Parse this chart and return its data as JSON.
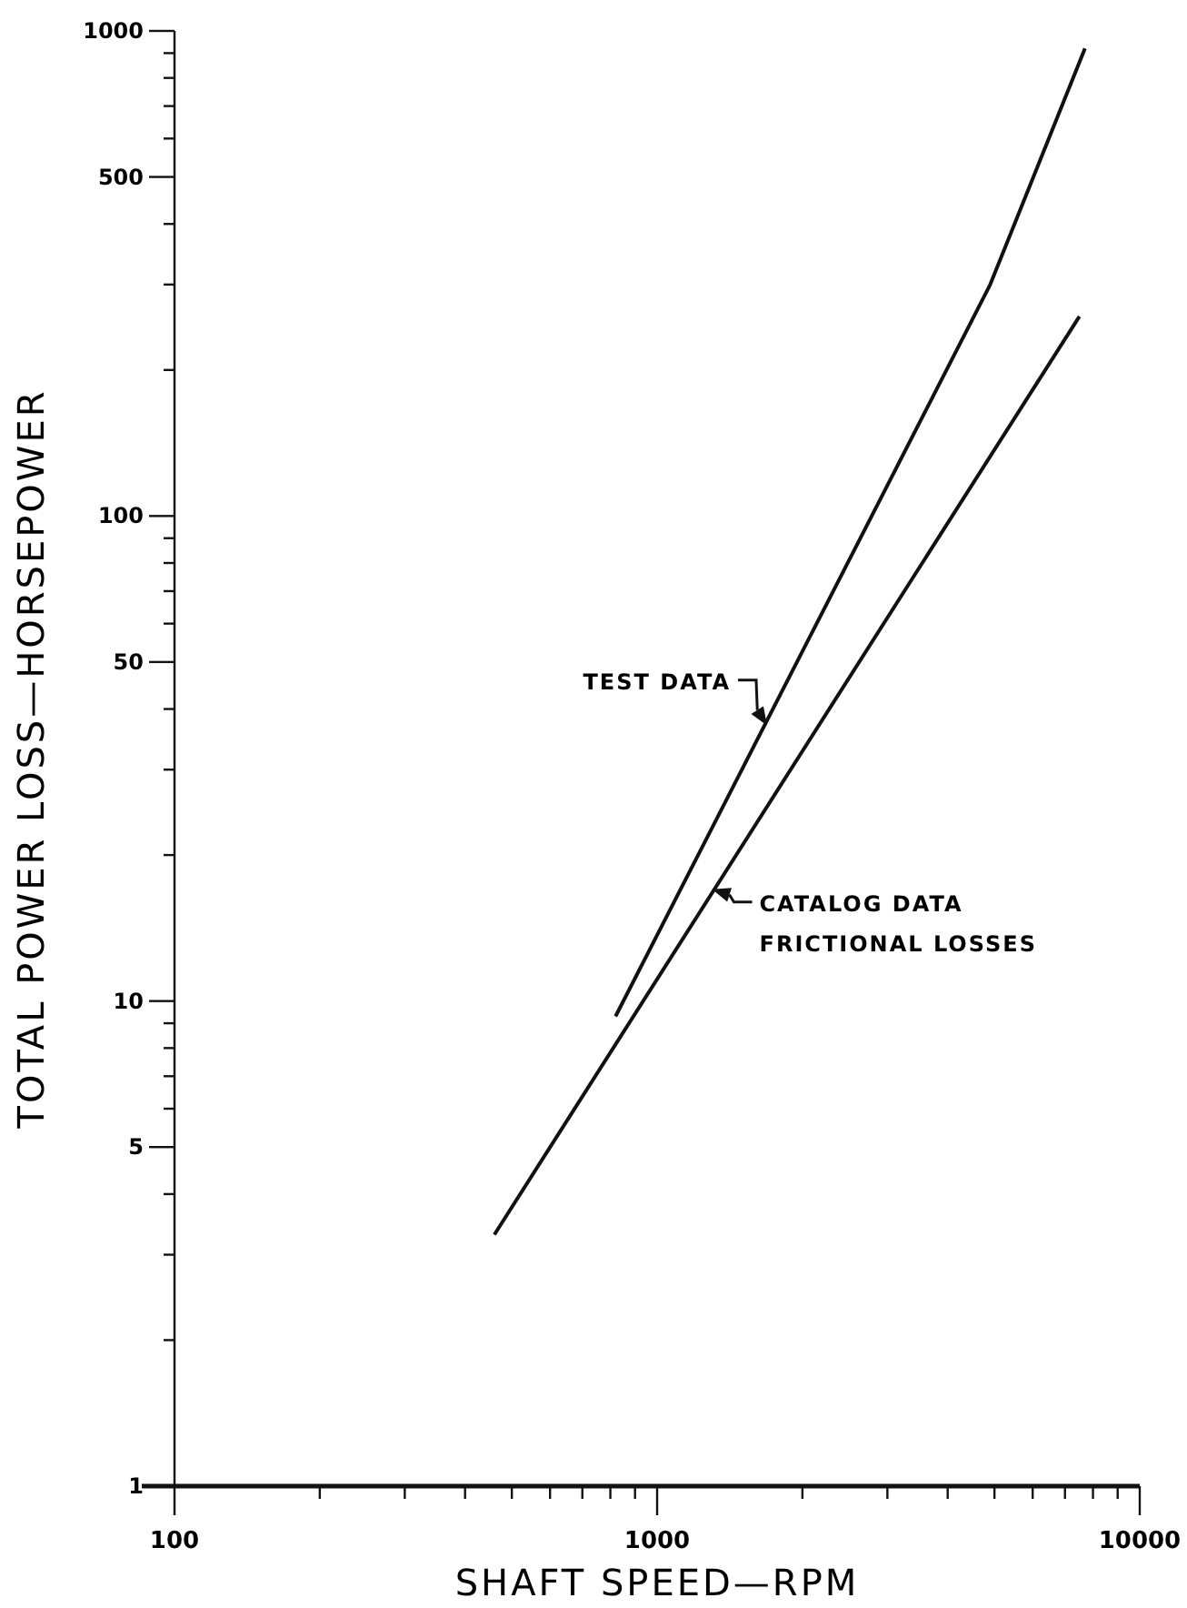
{
  "chart_data": {
    "type": "line",
    "xlabel": "SHAFT SPEED—RPM",
    "ylabel": "TOTAL POWER LOSS—HORSEPOWER",
    "log": "xy",
    "grid": false,
    "marker": "none",
    "line_style": "solid",
    "xlim": [
      100,
      10000
    ],
    "xticks": [
      100,
      {
        "value": 200,
        "label": null
      },
      {
        "value": 300,
        "label": null
      },
      {
        "value": 400,
        "label": null
      },
      {
        "value": 500,
        "label": null
      },
      {
        "value": 600,
        "label": null
      },
      {
        "value": 700,
        "label": null
      },
      {
        "value": 800,
        "label": null
      },
      {
        "value": 900,
        "label": null
      },
      1000,
      {
        "value": 2000,
        "label": null
      },
      {
        "value": 3000,
        "label": null
      },
      {
        "value": 4000,
        "label": null
      },
      {
        "value": 5000,
        "label": null
      },
      {
        "value": 6000,
        "label": null
      },
      {
        "value": 7000,
        "label": null
      },
      {
        "value": 8000,
        "label": null
      },
      {
        "value": 9000,
        "label": null
      },
      10000
    ],
    "ylim": [
      1,
      1000
    ],
    "yticks": [
      1,
      {
        "value": 2,
        "label": null
      },
      {
        "value": 3,
        "label": null
      },
      {
        "value": 4,
        "label": null
      },
      5,
      {
        "value": 6,
        "label": null
      },
      {
        "value": 7,
        "label": null
      },
      {
        "value": 8,
        "label": null
      },
      {
        "value": 9,
        "label": null
      },
      10,
      {
        "value": 20,
        "label": null
      },
      {
        "value": 30,
        "label": null
      },
      {
        "value": 40,
        "label": null
      },
      50,
      {
        "value": 60,
        "label": null
      },
      {
        "value": 70,
        "label": null
      },
      {
        "value": 80,
        "label": null
      },
      {
        "value": 90,
        "label": null
      },
      100,
      {
        "value": 200,
        "label": null
      },
      {
        "value": 300,
        "label": null
      },
      {
        "value": 400,
        "label": null
      },
      500,
      {
        "value": 600,
        "label": null
      },
      {
        "value": 700,
        "label": null
      },
      {
        "value": 800,
        "label": null
      },
      {
        "value": 900,
        "label": null
      },
      1000
    ],
    "series": [
      {
        "color": "#111111",
        "x": [
          820,
          4900,
          7700
        ],
        "values": [
          9.3,
          300,
          920
        ]
      },
      {
        "color": "#111111",
        "x": [
          460,
          7500
        ],
        "values": [
          3.3,
          258
        ]
      }
    ],
    "annotations": [
      {
        "text": "TEST DATA",
        "x": 1690,
        "y": 37
      },
      {
        "text": "CATALOG DATA\nFRICTIONAL LOSSES",
        "x": 1300,
        "y": 17
      }
    ]
  }
}
